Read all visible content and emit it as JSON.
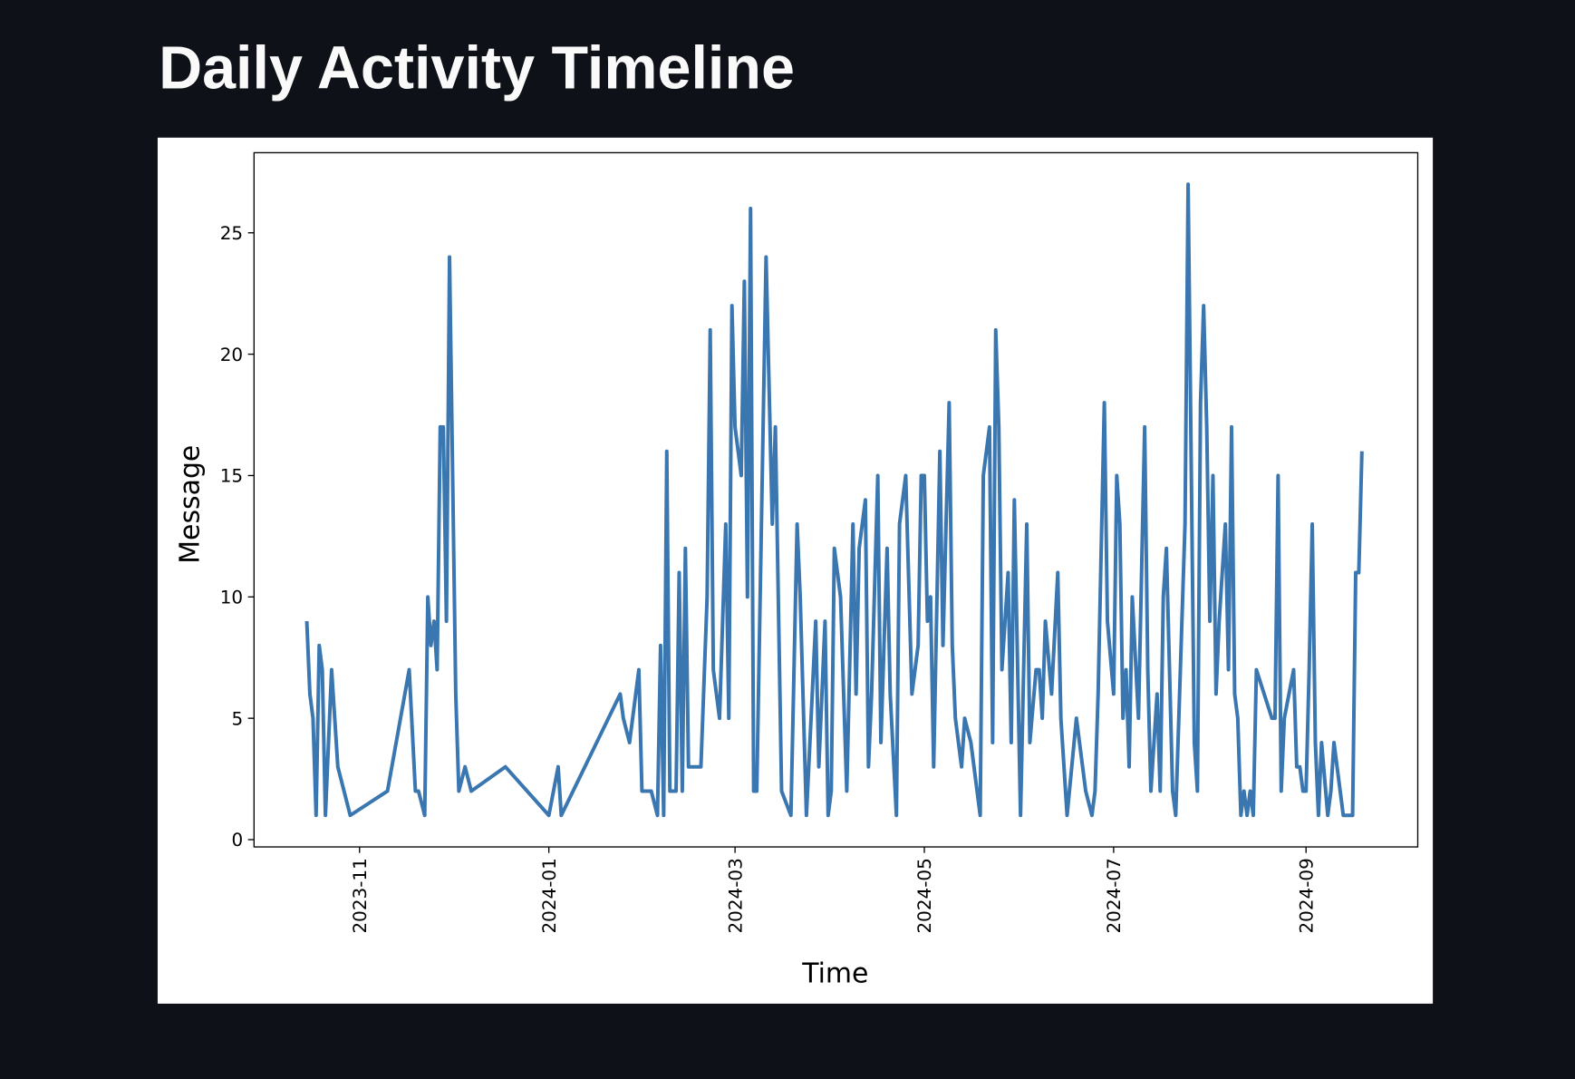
{
  "chart_data": {
    "type": "line",
    "title": "Daily Activity Timeline",
    "xlabel": "Time",
    "ylabel": "Message",
    "color": "#3a76b0",
    "grid": false,
    "xlim": [
      "2023-09-28",
      "2024-10-07"
    ],
    "xticks": [
      {
        "value": "2023-11-01",
        "label": "2023-11"
      },
      {
        "value": "2024-01-01",
        "label": "2024-01"
      },
      {
        "value": "2024-03-01",
        "label": "2024-03"
      },
      {
        "value": "2024-05-01",
        "label": "2024-05"
      },
      {
        "value": "2024-07-01",
        "label": "2024-07"
      },
      {
        "value": "2024-09-01",
        "label": "2024-09"
      }
    ],
    "ylim": [
      -0.3,
      28.3
    ],
    "yticks": [
      0,
      5,
      10,
      15,
      20,
      25
    ],
    "x": [
      "2023-10-15",
      "2023-10-16",
      "2023-10-17",
      "2023-10-18",
      "2023-10-19",
      "2023-10-20",
      "2023-10-21",
      "2023-10-23",
      "2023-10-25",
      "2023-10-29",
      "2023-11-10",
      "2023-11-17",
      "2023-11-19",
      "2023-11-20",
      "2023-11-22",
      "2023-11-23",
      "2023-11-24",
      "2023-11-25",
      "2023-11-26",
      "2023-11-27",
      "2023-11-28",
      "2023-11-29",
      "2023-11-30",
      "2023-12-02",
      "2023-12-03",
      "2023-12-05",
      "2023-12-07",
      "2023-12-18",
      "2024-01-01",
      "2024-01-04",
      "2024-01-05",
      "2024-01-24",
      "2024-01-25",
      "2024-01-27",
      "2024-01-30",
      "2024-01-31",
      "2024-02-03",
      "2024-02-05",
      "2024-02-06",
      "2024-02-07",
      "2024-02-08",
      "2024-02-09",
      "2024-02-11",
      "2024-02-12",
      "2024-02-13",
      "2024-02-14",
      "2024-02-15",
      "2024-02-19",
      "2024-02-21",
      "2024-02-22",
      "2024-02-23",
      "2024-02-25",
      "2024-02-27",
      "2024-02-28",
      "2024-02-29",
      "2024-03-01",
      "2024-03-03",
      "2024-03-04",
      "2024-03-05",
      "2024-03-06",
      "2024-03-07",
      "2024-03-08",
      "2024-03-11",
      "2024-03-13",
      "2024-03-14",
      "2024-03-16",
      "2024-03-19",
      "2024-03-21",
      "2024-03-22",
      "2024-03-24",
      "2024-03-27",
      "2024-03-28",
      "2024-03-30",
      "2024-03-31",
      "2024-04-01",
      "2024-04-02",
      "2024-04-04",
      "2024-04-06",
      "2024-04-08",
      "2024-04-09",
      "2024-04-10",
      "2024-04-12",
      "2024-04-13",
      "2024-04-14",
      "2024-04-16",
      "2024-04-17",
      "2024-04-19",
      "2024-04-20",
      "2024-04-22",
      "2024-04-23",
      "2024-04-25",
      "2024-04-27",
      "2024-04-29",
      "2024-04-30",
      "2024-05-01",
      "2024-05-02",
      "2024-05-03",
      "2024-05-04",
      "2024-05-06",
      "2024-05-07",
      "2024-05-09",
      "2024-05-10",
      "2024-05-11",
      "2024-05-13",
      "2024-05-14",
      "2024-05-16",
      "2024-05-19",
      "2024-05-20",
      "2024-05-22",
      "2024-05-23",
      "2024-05-24",
      "2024-05-25",
      "2024-05-26",
      "2024-05-28",
      "2024-05-29",
      "2024-05-30",
      "2024-06-01",
      "2024-06-03",
      "2024-06-04",
      "2024-06-06",
      "2024-06-07",
      "2024-06-08",
      "2024-06-09",
      "2024-06-11",
      "2024-06-13",
      "2024-06-14",
      "2024-06-16",
      "2024-06-19",
      "2024-06-21",
      "2024-06-22",
      "2024-06-24",
      "2024-06-25",
      "2024-06-26",
      "2024-06-28",
      "2024-06-29",
      "2024-07-01",
      "2024-07-02",
      "2024-07-03",
      "2024-07-04",
      "2024-07-05",
      "2024-07-06",
      "2024-07-07",
      "2024-07-09",
      "2024-07-11",
      "2024-07-12",
      "2024-07-13",
      "2024-07-15",
      "2024-07-16",
      "2024-07-17",
      "2024-07-18",
      "2024-07-20",
      "2024-07-21",
      "2024-07-24",
      "2024-07-25",
      "2024-07-27",
      "2024-07-28",
      "2024-07-29",
      "2024-07-30",
      "2024-07-31",
      "2024-08-01",
      "2024-08-02",
      "2024-08-03",
      "2024-08-04",
      "2024-08-06",
      "2024-08-07",
      "2024-08-08",
      "2024-08-09",
      "2024-08-10",
      "2024-08-11",
      "2024-08-12",
      "2024-08-13",
      "2024-08-14",
      "2024-08-15",
      "2024-08-16",
      "2024-08-21",
      "2024-08-22",
      "2024-08-23",
      "2024-08-24",
      "2024-08-25",
      "2024-08-28",
      "2024-08-29",
      "2024-08-30",
      "2024-08-31",
      "2024-09-01",
      "2024-09-02",
      "2024-09-03",
      "2024-09-04",
      "2024-09-05",
      "2024-09-06",
      "2024-09-08",
      "2024-09-09",
      "2024-09-10",
      "2024-09-13",
      "2024-09-15",
      "2024-09-16",
      "2024-09-17",
      "2024-09-18",
      "2024-09-19"
    ],
    "values": [
      9,
      6,
      5,
      1,
      8,
      7,
      1,
      7,
      3,
      1,
      2,
      7,
      2,
      2,
      1,
      10,
      8,
      9,
      7,
      17,
      17,
      9,
      24,
      6,
      2,
      3,
      2,
      3,
      1,
      3,
      1,
      6,
      5,
      4,
      7,
      2,
      2,
      1,
      8,
      1,
      16,
      2,
      2,
      11,
      2,
      12,
      3,
      3,
      10,
      21,
      7,
      5,
      13,
      5,
      22,
      17,
      15,
      23,
      10,
      26,
      2,
      2,
      24,
      13,
      17,
      2,
      1,
      13,
      10,
      1,
      9,
      3,
      9,
      1,
      2,
      12,
      10,
      2,
      13,
      6,
      12,
      14,
      3,
      6,
      15,
      4,
      12,
      6,
      1,
      13,
      15,
      6,
      8,
      15,
      15,
      9,
      10,
      3,
      16,
      8,
      18,
      8,
      5,
      3,
      5,
      4,
      1,
      15,
      17,
      4,
      21,
      17,
      7,
      11,
      4,
      14,
      1,
      13,
      4,
      7,
      7,
      5,
      9,
      6,
      11,
      5,
      1,
      5,
      3,
      2,
      1,
      2,
      6,
      18,
      9,
      6,
      15,
      13,
      5,
      7,
      3,
      10,
      5,
      17,
      7,
      2,
      6,
      2,
      10,
      12,
      2,
      1,
      13,
      27,
      4,
      2,
      18,
      22,
      17,
      9,
      15,
      6,
      9,
      13,
      7,
      17,
      6,
      5,
      1,
      2,
      1,
      2,
      1,
      7,
      5,
      5,
      15,
      2,
      5,
      7,
      3,
      3,
      2,
      2,
      7,
      13,
      4,
      1,
      4,
      1,
      2,
      4,
      1,
      1,
      1,
      11,
      11,
      16
    ]
  }
}
